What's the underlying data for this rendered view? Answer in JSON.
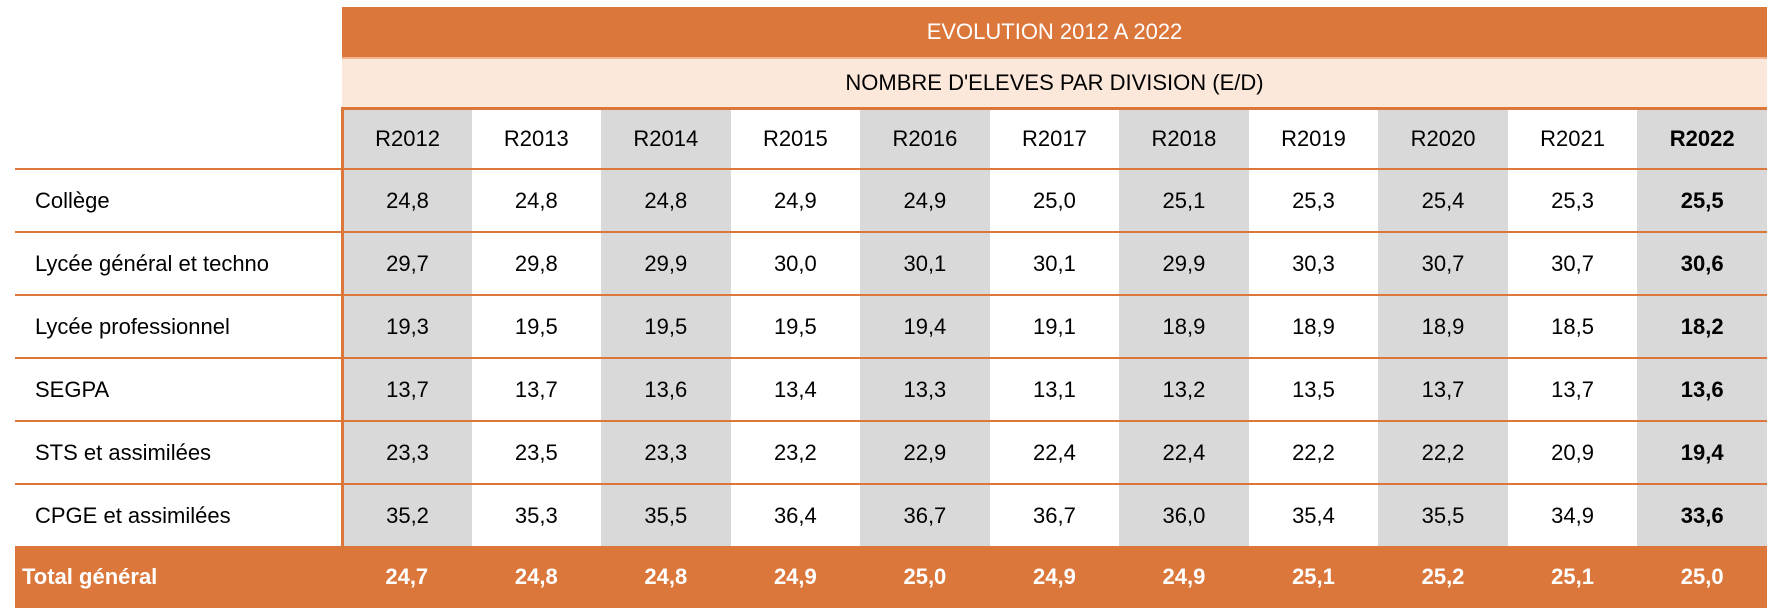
{
  "title": "EVOLUTION 2012 A 2022",
  "subtitle": "NOMBRE D'ELEVES PAR DIVISION (E/D)",
  "columns": [
    "R2012",
    "R2013",
    "R2014",
    "R2015",
    "R2016",
    "R2017",
    "R2018",
    "R2019",
    "R2020",
    "R2021",
    "R2022"
  ],
  "rows": [
    {
      "label": "Collège",
      "values": [
        "24,8",
        "24,8",
        "24,8",
        "24,9",
        "24,9",
        "25,0",
        "25,1",
        "25,3",
        "25,4",
        "25,3",
        "25,5"
      ]
    },
    {
      "label": "Lycée général et techno",
      "values": [
        "29,7",
        "29,8",
        "29,9",
        "30,0",
        "30,1",
        "30,1",
        "29,9",
        "30,3",
        "30,7",
        "30,7",
        "30,6"
      ]
    },
    {
      "label": "Lycée professionnel",
      "values": [
        "19,3",
        "19,5",
        "19,5",
        "19,5",
        "19,4",
        "19,1",
        "18,9",
        "18,9",
        "18,9",
        "18,5",
        "18,2"
      ]
    },
    {
      "label": "SEGPA",
      "values": [
        "13,7",
        "13,7",
        "13,6",
        "13,4",
        "13,3",
        "13,1",
        "13,2",
        "13,5",
        "13,7",
        "13,7",
        "13,6"
      ]
    },
    {
      "label": "STS et assimilées",
      "values": [
        "23,3",
        "23,5",
        "23,3",
        "23,2",
        "22,9",
        "22,4",
        "22,4",
        "22,2",
        "22,2",
        "20,9",
        "19,4"
      ]
    },
    {
      "label": "CPGE et assimilées",
      "values": [
        "35,2",
        "35,3",
        "35,5",
        "36,4",
        "36,7",
        "36,7",
        "36,0",
        "35,4",
        "35,5",
        "34,9",
        "33,6"
      ]
    }
  ],
  "total": {
    "label": "Total général",
    "values": [
      "24,7",
      "24,8",
      "24,8",
      "24,9",
      "25,0",
      "24,9",
      "24,9",
      "25,1",
      "25,2",
      "25,1",
      "25,0"
    ]
  },
  "colors": {
    "accent": "#DC773C",
    "light": "#FCE8DA",
    "stripe": "#D9D9D9"
  }
}
